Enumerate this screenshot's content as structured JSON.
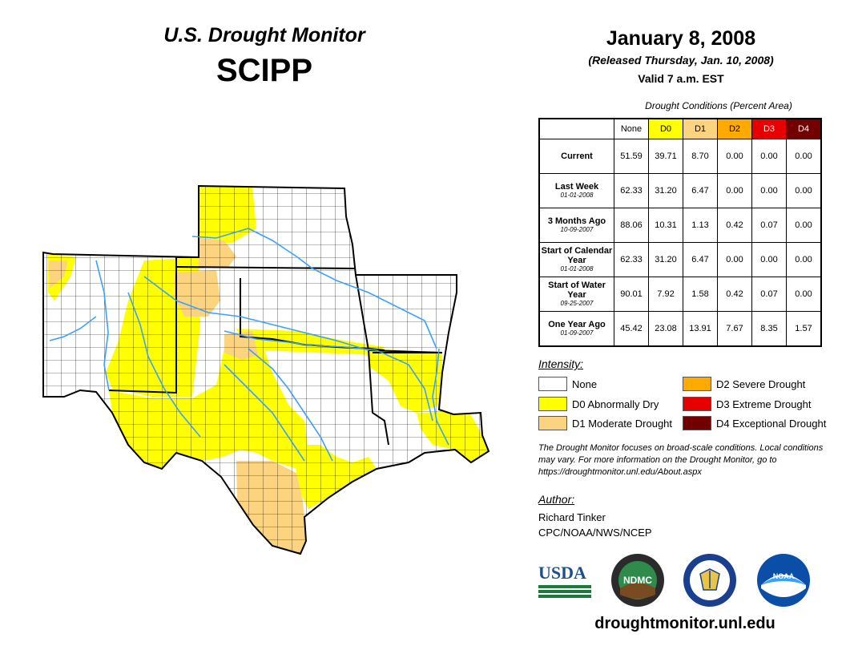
{
  "header": {
    "title": "U.S. Drought Monitor",
    "region": "SCIPP",
    "date": "January 8, 2008",
    "released": "(Released Thursday, Jan. 10, 2008)",
    "valid": "Valid 7 a.m. EST"
  },
  "table": {
    "caption": "Drought Conditions (Percent Area)",
    "columns": [
      {
        "label": "None",
        "color": "#ffffff",
        "text_color": "#000000"
      },
      {
        "label": "D0",
        "color": "#ffff00",
        "text_color": "#000000"
      },
      {
        "label": "D1",
        "color": "#fcd37f",
        "text_color": "#000000"
      },
      {
        "label": "D2",
        "color": "#ffaa00",
        "text_color": "#000000"
      },
      {
        "label": "D3",
        "color": "#e60000",
        "text_color": "#ffffff"
      },
      {
        "label": "D4",
        "color": "#730000",
        "text_color": "#ffffff"
      }
    ],
    "rows": [
      {
        "label": "Current",
        "date": "",
        "values": [
          "51.59",
          "39.71",
          "8.70",
          "0.00",
          "0.00",
          "0.00"
        ]
      },
      {
        "label": "Last Week",
        "date": "01-01-2008",
        "values": [
          "62.33",
          "31.20",
          "6.47",
          "0.00",
          "0.00",
          "0.00"
        ]
      },
      {
        "label": "3 Months Ago",
        "date": "10-09-2007",
        "values": [
          "88.06",
          "10.31",
          "1.13",
          "0.42",
          "0.07",
          "0.00"
        ]
      },
      {
        "label": "Start of Calendar Year",
        "date": "01-01-2008",
        "values": [
          "62.33",
          "31.20",
          "6.47",
          "0.00",
          "0.00",
          "0.00"
        ]
      },
      {
        "label": "Start of Water Year",
        "date": "09-25-2007",
        "values": [
          "90.01",
          "7.92",
          "1.58",
          "0.42",
          "0.07",
          "0.00"
        ]
      },
      {
        "label": "One Year Ago",
        "date": "01-09-2007",
        "values": [
          "45.42",
          "23.08",
          "13.91",
          "7.67",
          "8.35",
          "1.57"
        ]
      }
    ]
  },
  "legend": {
    "title": "Intensity:",
    "items": [
      {
        "label": "None",
        "color": "#ffffff"
      },
      {
        "label": "D0 Abnormally Dry",
        "color": "#ffff00"
      },
      {
        "label": "D1 Moderate Drought",
        "color": "#fcd37f"
      },
      {
        "label": "D2 Severe Drought",
        "color": "#ffaa00"
      },
      {
        "label": "D3 Extreme Drought",
        "color": "#e60000"
      },
      {
        "label": "D4 Exceptional Drought",
        "color": "#730000"
      }
    ]
  },
  "note": "The Drought Monitor focuses on broad-scale conditions. Local conditions may vary. For more information on the Drought Monitor, go to https://droughtmonitor.unl.edu/About.aspx",
  "author": {
    "title": "Author:",
    "name": "Richard Tinker",
    "org": "CPC/NOAA/NWS/NCEP"
  },
  "logos": {
    "usda": "USDA",
    "ndmc": "NDMC",
    "noaa": "NOAA"
  },
  "website": "droughtmonitor.unl.edu",
  "map_colors": {
    "none": "#ffffff",
    "d0": "#ffff00",
    "d1": "#fcd37f",
    "border": "#000000",
    "river": "#3aa0ff"
  }
}
